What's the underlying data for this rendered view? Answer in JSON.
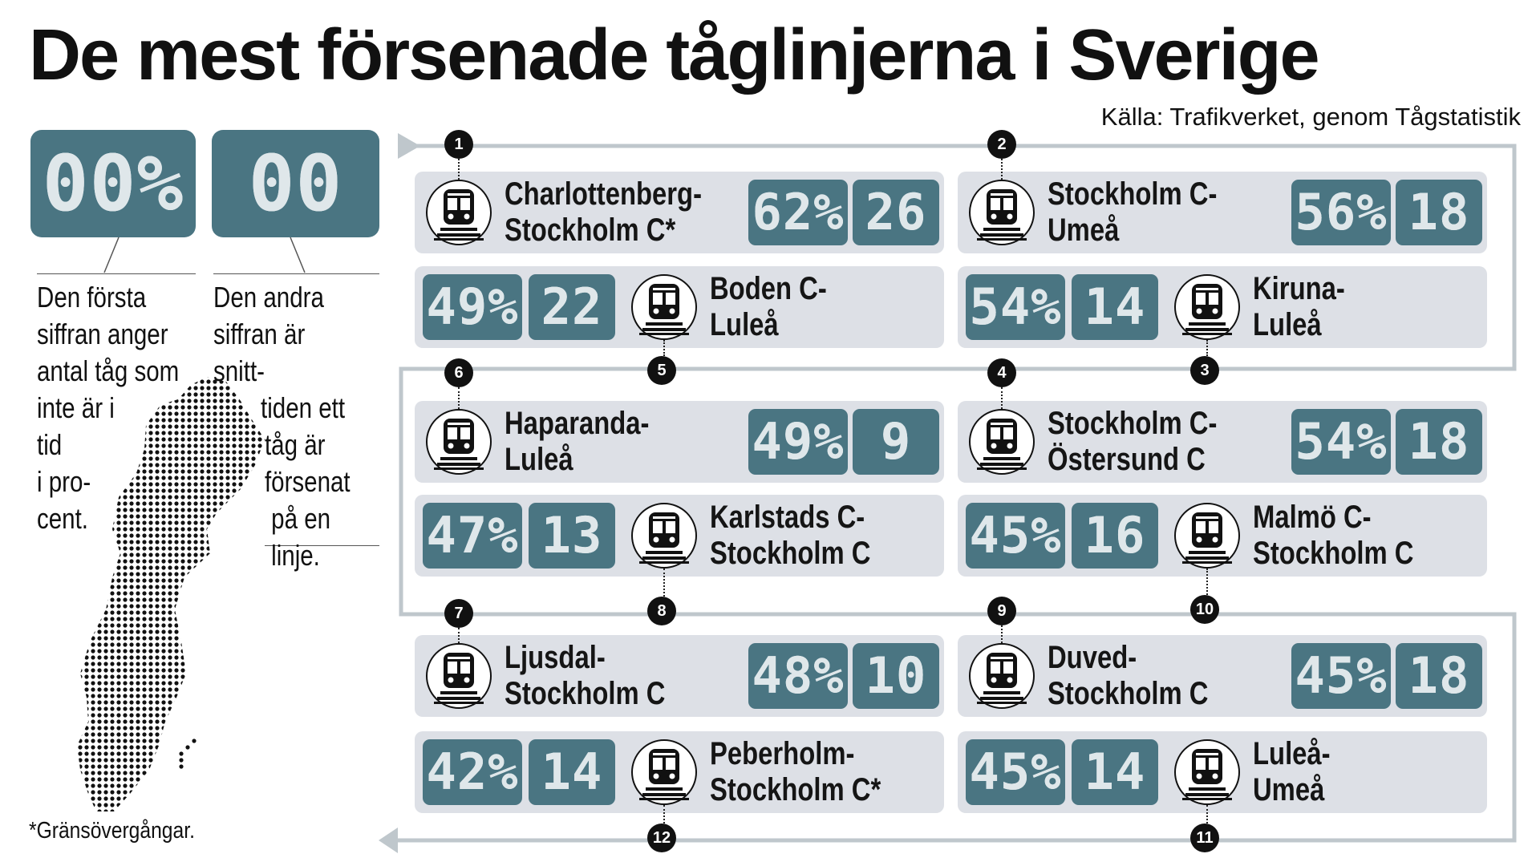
{
  "title": "De mest försenade tåglinjerna i Sverige",
  "source": "Källa: Trafikverket, genom Tågstatistik",
  "legend": {
    "box1": "00%",
    "box2": "00",
    "text1": [
      "Den första",
      "siffran anger",
      "antal tåg som",
      "inte är i",
      "tid",
      "i pro-",
      "cent."
    ],
    "text2": [
      "Den andra",
      "siffran är snitt-",
      "tiden ett",
      "tåg är",
      "försenat",
      "på en",
      "linje."
    ]
  },
  "footnote": "*Gränsövergångar.",
  "routes": [
    {
      "rank": "1",
      "line1": "Charlottenberg-",
      "line2": "Stockholm C*",
      "pct": "62%",
      "delay": "26"
    },
    {
      "rank": "2",
      "line1": "Stockholm C-",
      "line2": "Umeå",
      "pct": "56%",
      "delay": "18"
    },
    {
      "rank": "3",
      "line1": "Kiruna-",
      "line2": "Luleå",
      "pct": "54%",
      "delay": "14"
    },
    {
      "rank": "4",
      "line1": "Stockholm C-",
      "line2": "Östersund C",
      "pct": "54%",
      "delay": "18"
    },
    {
      "rank": "5",
      "line1": "Boden C-",
      "line2": "Luleå",
      "pct": "49%",
      "delay": "22"
    },
    {
      "rank": "6",
      "line1": "Haparanda-",
      "line2": "Luleå",
      "pct": "49%",
      "delay": "9"
    },
    {
      "rank": "7",
      "line1": "Ljusdal-",
      "line2": "Stockholm C",
      "pct": "48%",
      "delay": "10"
    },
    {
      "rank": "8",
      "line1": "Karlstads C-",
      "line2": "Stockholm C",
      "pct": "47%",
      "delay": "13"
    },
    {
      "rank": "9",
      "line1": "Duved-",
      "line2": "Stockholm C",
      "pct": "45%",
      "delay": "18"
    },
    {
      "rank": "10",
      "line1": "Malmö C-",
      "line2": "Stockholm C",
      "pct": "45%",
      "delay": "16"
    },
    {
      "rank": "11",
      "line1": "Luleå-",
      "line2": "Umeå",
      "pct": "45%",
      "delay": "14"
    },
    {
      "rank": "12",
      "line1": "Peberholm-",
      "line2": "Stockholm C*",
      "pct": "42%",
      "delay": "14"
    }
  ],
  "icons": {
    "train": "train-icon",
    "map": "sweden-dot-map",
    "arrow": "arrow-icon"
  },
  "colors": {
    "box": "#4a7582",
    "card": "#dde0e6",
    "digits": "#dfe7ea"
  }
}
